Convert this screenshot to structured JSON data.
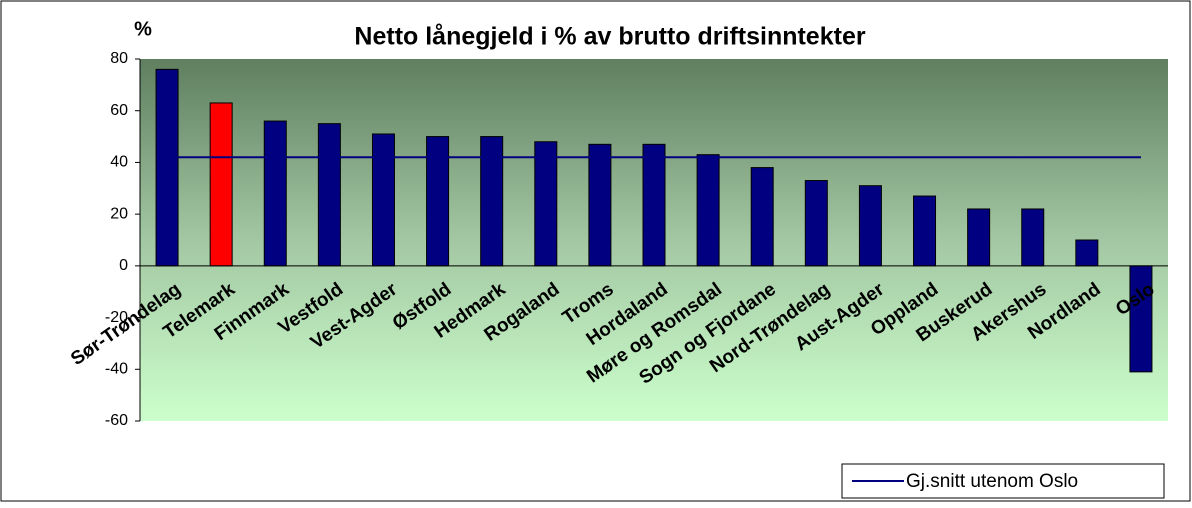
{
  "chart_data": {
    "type": "bar",
    "title": "Netto lånegjeld i % av brutto driftsinntekter",
    "y_label": "%",
    "categories": [
      "Sør-Trøndelag",
      "Telemark",
      "Finnmark",
      "Vestfold",
      "Vest-Agder",
      "Østfold",
      "Hedmark",
      "Rogaland",
      "Troms",
      "Hordaland",
      "Møre og Romsdal",
      "Sogn og Fjordane",
      "Nord-Trøndelag",
      "Aust-Agder",
      "Oppland",
      "Buskerud",
      "Akershus",
      "Nordland",
      "Oslo"
    ],
    "values": [
      76,
      63,
      56,
      55,
      51,
      50,
      50,
      48,
      47,
      47,
      43,
      38,
      33,
      31,
      27,
      22,
      22,
      10,
      -41
    ],
    "colors": [
      "#000080",
      "#ff0000",
      "#000080",
      "#000080",
      "#000080",
      "#000080",
      "#000080",
      "#000080",
      "#000080",
      "#000080",
      "#000080",
      "#000080",
      "#000080",
      "#000080",
      "#000080",
      "#000080",
      "#000080",
      "#000080",
      "#000080"
    ],
    "reference_line": {
      "name": "Gj.snitt utenom Oslo",
      "value": 42,
      "color": "#000080"
    },
    "ylim": [
      -60,
      80
    ],
    "yticks": [
      -60,
      -40,
      -20,
      0,
      20,
      40,
      60,
      80
    ],
    "legend": "lower right"
  }
}
